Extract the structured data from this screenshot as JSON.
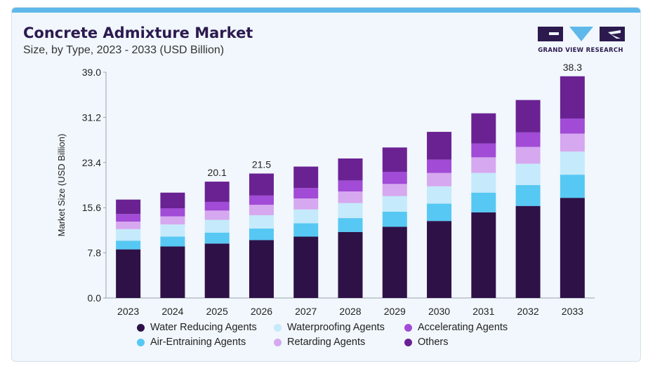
{
  "header": {
    "title": "Concrete Admixture Market",
    "subtitle": "Size, by Type, 2023 - 2033 (USD Billion)"
  },
  "logo": {
    "text": "GRAND VIEW RESEARCH",
    "colors": {
      "primary": "#2c1a4f",
      "accent": "#5fb8ea"
    }
  },
  "chart_data": {
    "type": "bar",
    "stacked": true,
    "categories": [
      "2023",
      "2024",
      "2025",
      "2026",
      "2027",
      "2028",
      "2029",
      "2030",
      "2031",
      "2032",
      "2033"
    ],
    "ylabel": "Market Size (USD Billion)",
    "xlabel": "",
    "ylim": [
      0,
      39.0
    ],
    "yticks": [
      "0.0",
      "7.8",
      "15.6",
      "23.4",
      "31.2",
      "39.0"
    ],
    "grid": false,
    "legend_position": "bottom",
    "total_labels": [
      {
        "category": "2025",
        "text": "20.1"
      },
      {
        "category": "2026",
        "text": "21.5"
      },
      {
        "category": "2033",
        "text": "38.3"
      }
    ],
    "series": [
      {
        "name": "Water Reducing Agents",
        "color": "#2e1147",
        "values": [
          8.4,
          8.9,
          9.4,
          10.0,
          10.6,
          11.4,
          12.3,
          13.3,
          14.8,
          15.9,
          17.3
        ]
      },
      {
        "name": "Air-Entraining Agents",
        "color": "#56c8f3",
        "values": [
          1.5,
          1.7,
          1.9,
          2.0,
          2.3,
          2.4,
          2.6,
          3.0,
          3.4,
          3.6,
          4.0
        ]
      },
      {
        "name": "Waterproofing Agents",
        "color": "#c5eafb",
        "values": [
          2.0,
          2.1,
          2.2,
          2.3,
          2.4,
          2.6,
          2.7,
          3.0,
          3.4,
          3.7,
          4.0
        ]
      },
      {
        "name": "Retarding Agents",
        "color": "#d6a8ef",
        "values": [
          1.3,
          1.4,
          1.6,
          1.8,
          1.9,
          2.0,
          2.1,
          2.3,
          2.7,
          2.9,
          3.1
        ]
      },
      {
        "name": "Accelerating Agents",
        "color": "#a14bd6",
        "values": [
          1.3,
          1.4,
          1.5,
          1.6,
          1.8,
          1.9,
          2.1,
          2.3,
          2.4,
          2.5,
          2.6
        ]
      },
      {
        "name": "Others",
        "color": "#6a2293",
        "values": [
          2.5,
          2.7,
          3.5,
          3.8,
          3.7,
          3.8,
          4.2,
          4.8,
          5.2,
          5.6,
          7.3
        ]
      }
    ]
  },
  "legend": {
    "items": [
      {
        "label": "Water Reducing Agents",
        "color": "#2e1147"
      },
      {
        "label": "Waterproofing Agents",
        "color": "#c5eafb"
      },
      {
        "label": "Accelerating Agents",
        "color": "#a14bd6"
      },
      {
        "label": "Air-Entraining Agents",
        "color": "#56c8f3"
      },
      {
        "label": "Retarding Agents",
        "color": "#d6a8ef"
      },
      {
        "label": "Others",
        "color": "#6a2293"
      }
    ]
  }
}
